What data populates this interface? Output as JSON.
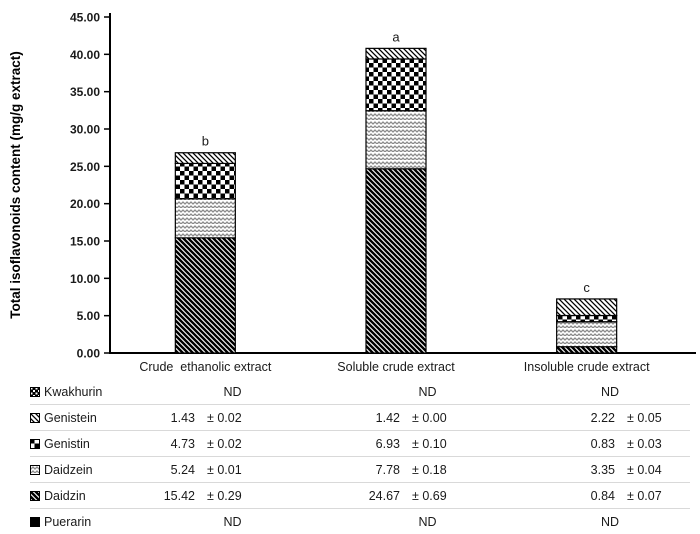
{
  "chart_data": {
    "type": "bar",
    "stacked": true,
    "title": "",
    "xlabel": "",
    "ylabel": "Total isoflavonoids content (mg/g extract)",
    "ylim": [
      0,
      45
    ],
    "ytick_step": 5,
    "ytick_labels": [
      "0.00",
      "5.00",
      "10.00",
      "15.00",
      "20.00",
      "25.00",
      "30.00",
      "35.00",
      "40.00",
      "45.00"
    ],
    "grid": false,
    "legend_position": "table-below",
    "categories": [
      "Crude  ethanolic extract",
      "Soluble crude extract",
      "Insoluble crude extract"
    ],
    "sig_letters": [
      "b",
      "a",
      "c"
    ],
    "series": [
      {
        "name": "Puerarin",
        "pattern": "solid-black",
        "values": [
          null,
          null,
          null
        ],
        "display": [
          "ND",
          "ND",
          "ND"
        ]
      },
      {
        "name": "Daidzin",
        "pattern": "heavy-diagonal",
        "values": [
          15.42,
          24.67,
          0.84
        ],
        "errors": [
          0.29,
          0.69,
          0.07
        ]
      },
      {
        "name": "Daidzein",
        "pattern": "weave",
        "values": [
          5.24,
          7.78,
          3.35
        ],
        "errors": [
          0.01,
          0.18,
          0.04
        ]
      },
      {
        "name": "Genistin",
        "pattern": "checkerboard",
        "values": [
          4.73,
          6.93,
          0.83
        ],
        "errors": [
          0.02,
          0.1,
          0.03
        ]
      },
      {
        "name": "Genistein",
        "pattern": "light-diagonal",
        "values": [
          1.43,
          1.42,
          2.22
        ],
        "errors": [
          0.02,
          0.0,
          0.05
        ]
      },
      {
        "name": "Kwakhurin",
        "pattern": "dark-checker",
        "values": [
          null,
          null,
          null
        ],
        "display": [
          "ND",
          "ND",
          "ND"
        ]
      }
    ],
    "stack_totals": [
      26.82,
      40.8,
      7.24
    ]
  },
  "table": {
    "rows": [
      {
        "label": "Kwakhurin",
        "icon": "kwakhurin-pattern-swatch-icon",
        "pattern": "dark-checker",
        "cells": [
          {
            "nd": "ND"
          },
          {
            "nd": "ND"
          },
          {
            "nd": "ND"
          }
        ]
      },
      {
        "label": "Genistein",
        "icon": "genistein-pattern-swatch-icon",
        "pattern": "light-diagonal",
        "cells": [
          {
            "value": "1.43",
            "err": "± 0.02"
          },
          {
            "value": "1.42",
            "err": "± 0.00"
          },
          {
            "value": "2.22",
            "err": "± 0.05"
          }
        ]
      },
      {
        "label": "Genistin",
        "icon": "genistin-pattern-swatch-icon",
        "pattern": "checkerboard",
        "cells": [
          {
            "value": "4.73",
            "err": "± 0.02"
          },
          {
            "value": "6.93",
            "err": "± 0.10"
          },
          {
            "value": "0.83",
            "err": "± 0.03"
          }
        ]
      },
      {
        "label": "Daidzein",
        "icon": "daidzein-pattern-swatch-icon",
        "pattern": "weave",
        "cells": [
          {
            "value": "5.24",
            "err": "± 0.01"
          },
          {
            "value": "7.78",
            "err": "± 0.18"
          },
          {
            "value": "3.35",
            "err": "± 0.04"
          }
        ]
      },
      {
        "label": "Daidzin",
        "icon": "daidzin-pattern-swatch-icon",
        "pattern": "heavy-diagonal",
        "cells": [
          {
            "value": "15.42",
            "err": "± 0.29"
          },
          {
            "value": "24.67",
            "err": "± 0.69"
          },
          {
            "value": "0.84",
            "err": "± 0.07"
          }
        ]
      },
      {
        "label": "Puerarin",
        "icon": "puerarin-pattern-swatch-icon",
        "pattern": "solid-black",
        "cells": [
          {
            "nd": "ND"
          },
          {
            "nd": "ND"
          },
          {
            "nd": "ND"
          }
        ]
      }
    ]
  }
}
